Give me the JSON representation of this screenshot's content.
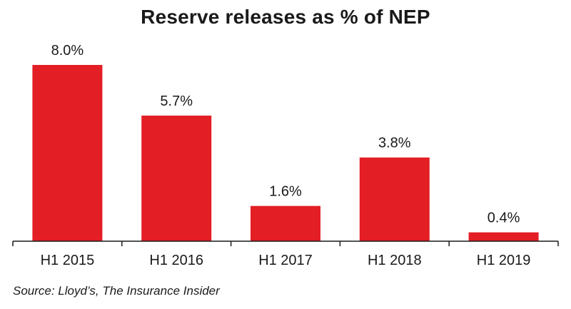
{
  "chart_data": {
    "type": "bar",
    "title": "Reserve releases as % of NEP",
    "categories": [
      "H1 2015",
      "H1 2016",
      "H1 2017",
      "H1 2018",
      "H1 2019"
    ],
    "values": [
      8.0,
      5.7,
      1.6,
      3.8,
      0.4
    ],
    "data_labels": [
      "8.0%",
      "5.7%",
      "1.6%",
      "3.8%",
      "0.4%"
    ],
    "xlabel": "",
    "ylabel": "",
    "ylim": [
      0,
      8.0
    ],
    "grid": false,
    "legend": "none",
    "bar_color": "#e31e24"
  },
  "source": "Source: Lloyd’s, The Insurance Insider"
}
